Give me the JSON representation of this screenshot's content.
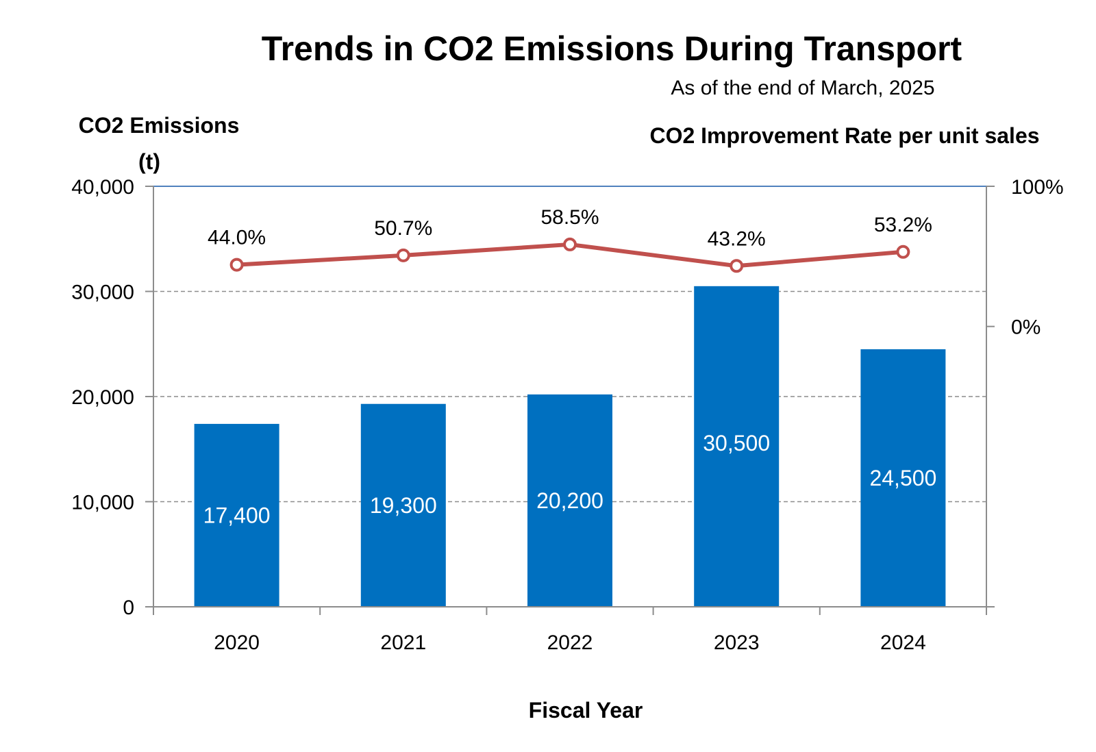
{
  "chart_data": {
    "type": "bar",
    "title": "Trends in CO2 Emissions During Transport",
    "subtitle": "As of the end of March, 2025",
    "xlabel": "Fiscal Year",
    "ylabel_line1": "CO2 Emissions",
    "ylabel_line2": "(t)",
    "y2label": "CO2 Improvement Rate per unit sales",
    "categories": [
      "2020",
      "2021",
      "2022",
      "2023",
      "2024"
    ],
    "series": [
      {
        "name": "CO2 Emissions",
        "type": "bar",
        "axis": "left",
        "color": "#0070C0",
        "values": [
          17400,
          19300,
          20200,
          30500,
          24500
        ],
        "labels": [
          "17,400",
          "19,300",
          "20,200",
          "30,500",
          "24,500"
        ]
      },
      {
        "name": "CO2 Improvement Rate per unit sales",
        "type": "line",
        "axis": "right",
        "color": "#C0504D",
        "values": [
          44.0,
          50.7,
          58.5,
          43.2,
          53.2
        ],
        "labels": [
          "44.0%",
          "50.7%",
          "58.5%",
          "43.2%",
          "53.2%"
        ]
      }
    ],
    "ylim": [
      0,
      40000
    ],
    "yticks": [
      0,
      10000,
      20000,
      30000,
      40000
    ],
    "ytick_labels": [
      "0",
      "10,000",
      "20,000",
      "30,000",
      "40,000"
    ],
    "y2lim": [
      -200,
      100
    ],
    "y2ticks": [
      0,
      100
    ],
    "y2tick_labels": [
      "0%",
      "100%"
    ],
    "grid": true
  }
}
